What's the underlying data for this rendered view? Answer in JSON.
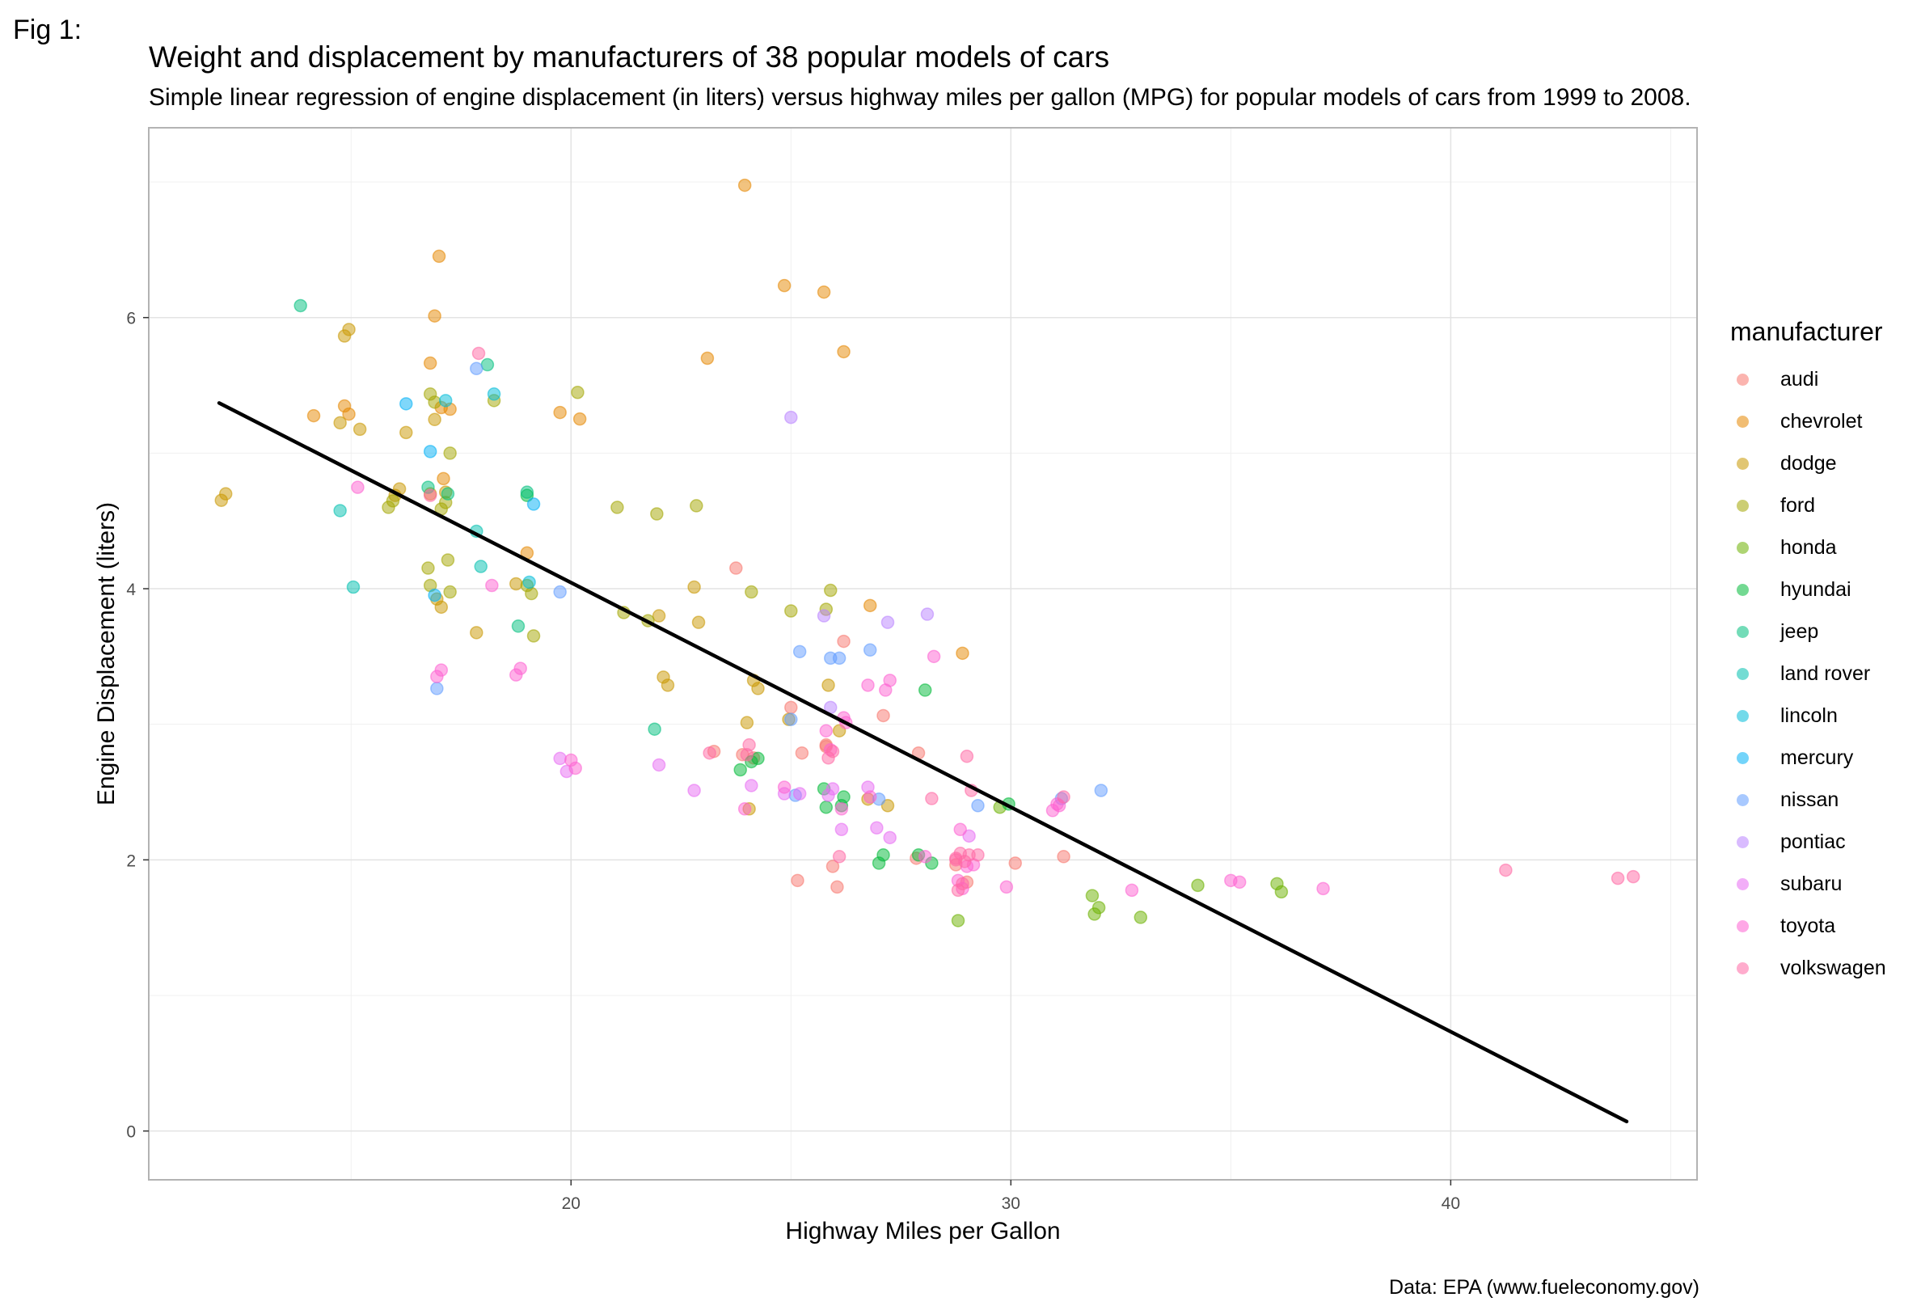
{
  "fig_label": "Fig 1:",
  "caption": "Data: EPA (www.fueleconomy.gov)",
  "chart_data": {
    "type": "scatter",
    "title": "Weight and displacement by manufacturers of 38 popular models of cars",
    "subtitle": "Simple linear regression of engine displacement (in liters) versus highway miles per gallon (MPG) for popular models of cars from 1999 to 2008.",
    "xlabel": "Highway Miles per Gallon",
    "ylabel": "Engine Displacement (liters)",
    "xlim": [
      10.4,
      45.6
    ],
    "ylim": [
      -0.36,
      7.4
    ],
    "x_ticks": [
      20,
      30,
      40
    ],
    "y_ticks": [
      0,
      2,
      4,
      6
    ],
    "grid": true,
    "legend_title": "manufacturer",
    "legend_position": "right",
    "regression_line": {
      "x": [
        12,
        44
      ],
      "y": [
        5.37,
        0.07
      ],
      "color": "#000000"
    },
    "series": [
      {
        "name": "audi",
        "color": "#F8766D",
        "points": [
          [
            24,
            4.2
          ],
          [
            26,
            3.6
          ],
          [
            27,
            3.1
          ],
          [
            25,
            3.1
          ],
          [
            24,
            2.8
          ],
          [
            26,
            2.8
          ],
          [
            25,
            2.8
          ],
          [
            25,
            1.8
          ],
          [
            26,
            1.8
          ],
          [
            26,
            2.0
          ],
          [
            28,
            2.0
          ],
          [
            29,
            2.0
          ],
          [
            31,
            2.0
          ],
          [
            30,
            2.0
          ],
          [
            29,
            1.8
          ],
          [
            28,
            2.8
          ],
          [
            26,
            2.8
          ],
          [
            23,
            2.8
          ],
          [
            24,
            2.8
          ]
        ]
      },
      {
        "name": "chevrolet",
        "color": "#E58700",
        "points": [
          [
            24,
            7.0
          ],
          [
            25,
            6.2
          ],
          [
            26,
            6.2
          ],
          [
            26,
            5.7
          ],
          [
            23,
            5.7
          ],
          [
            17,
            6.5
          ],
          [
            17,
            6.0
          ],
          [
            17,
            5.7
          ],
          [
            17,
            5.3
          ],
          [
            14,
            5.3
          ],
          [
            17,
            5.3
          ],
          [
            15,
            5.3
          ],
          [
            15,
            5.3
          ],
          [
            20,
            5.3
          ],
          [
            20,
            5.3
          ],
          [
            17,
            4.8
          ],
          [
            19,
            4.3
          ],
          [
            29,
            3.5
          ],
          [
            27,
            3.9
          ]
        ]
      },
      {
        "name": "dodge",
        "color": "#C99800",
        "points": [
          [
            12,
            4.7
          ],
          [
            12,
            4.7
          ],
          [
            15,
            5.9
          ],
          [
            15,
            5.9
          ],
          [
            15,
            5.2
          ],
          [
            15,
            5.2
          ],
          [
            16,
            4.7
          ],
          [
            16,
            4.7
          ],
          [
            17,
            5.2
          ],
          [
            17,
            4.7
          ],
          [
            16,
            5.2
          ],
          [
            17,
            4.7
          ],
          [
            17,
            3.9
          ],
          [
            17,
            3.9
          ],
          [
            18,
            3.7
          ],
          [
            19,
            4.0
          ],
          [
            22,
            3.3
          ],
          [
            22,
            3.3
          ],
          [
            22,
            3.8
          ],
          [
            23,
            3.8
          ],
          [
            23,
            4.0
          ],
          [
            24,
            3.3
          ],
          [
            24,
            3.3
          ],
          [
            24,
            2.4
          ],
          [
            25,
            3.0
          ],
          [
            26,
            3.3
          ],
          [
            27,
            2.4
          ],
          [
            27,
            2.4
          ],
          [
            26,
            3.0
          ],
          [
            24,
            3.0
          ]
        ]
      },
      {
        "name": "ford",
        "color": "#A3A500",
        "points": [
          [
            17,
            4.0
          ],
          [
            17,
            4.0
          ],
          [
            17,
            4.6
          ],
          [
            17,
            4.6
          ],
          [
            16,
            4.6
          ],
          [
            16,
            4.6
          ],
          [
            17,
            4.2
          ],
          [
            17,
            4.2
          ],
          [
            19,
            4.0
          ],
          [
            19,
            4.0
          ],
          [
            17,
            5.4
          ],
          [
            17,
            5.4
          ],
          [
            18,
            5.4
          ],
          [
            20,
            5.4
          ],
          [
            21,
            4.6
          ],
          [
            22,
            4.6
          ],
          [
            23,
            4.6
          ],
          [
            22,
            3.8
          ],
          [
            21,
            3.8
          ],
          [
            24,
            4.0
          ],
          [
            25,
            3.8
          ],
          [
            26,
            4.0
          ],
          [
            26,
            3.8
          ],
          [
            17,
            5.0
          ],
          [
            19,
            3.7
          ]
        ]
      },
      {
        "name": "honda",
        "color": "#6BB100",
        "points": [
          [
            32,
            1.6
          ],
          [
            32,
            1.6
          ],
          [
            29,
            1.6
          ],
          [
            34,
            1.8
          ],
          [
            36,
            1.8
          ],
          [
            36,
            1.8
          ],
          [
            33,
            1.6
          ],
          [
            32,
            1.7
          ],
          [
            30,
            2.4
          ]
        ]
      },
      {
        "name": "hyundai",
        "color": "#00BA38",
        "points": [
          [
            26,
            2.5
          ],
          [
            24,
            2.7
          ],
          [
            27,
            2.0
          ],
          [
            28,
            2.0
          ],
          [
            26,
            2.4
          ],
          [
            24,
            2.7
          ],
          [
            26,
            2.4
          ],
          [
            28,
            3.3
          ],
          [
            30,
            2.4
          ],
          [
            24,
            2.7
          ],
          [
            26,
            2.5
          ],
          [
            28,
            2.0
          ],
          [
            27,
            2.0
          ],
          [
            19,
            4.7
          ]
        ]
      },
      {
        "name": "jeep",
        "color": "#00BF7D",
        "points": [
          [
            14,
            6.1
          ],
          [
            17,
            4.7
          ],
          [
            17,
            4.7
          ],
          [
            18,
            5.7
          ],
          [
            19,
            4.7
          ],
          [
            22,
            3.0
          ],
          [
            19,
            3.7
          ]
        ]
      },
      {
        "name": "land rover",
        "color": "#00C0AF",
        "points": [
          [
            15,
            4.0
          ],
          [
            18,
            4.2
          ],
          [
            18,
            4.4
          ],
          [
            15,
            4.6
          ]
        ]
      },
      {
        "name": "lincoln",
        "color": "#00BCD8",
        "points": [
          [
            18,
            5.4
          ],
          [
            17,
            5.4
          ],
          [
            19,
            4.0
          ]
        ]
      },
      {
        "name": "mercury",
        "color": "#00B0F6",
        "points": [
          [
            17,
            4.0
          ],
          [
            17,
            5.0
          ],
          [
            16,
            5.4
          ],
          [
            19,
            4.6
          ]
        ]
      },
      {
        "name": "nissan",
        "color": "#619CFF",
        "points": [
          [
            25,
            2.5
          ],
          [
            25,
            3.0
          ],
          [
            26,
            3.5
          ],
          [
            27,
            3.5
          ],
          [
            29,
            2.4
          ],
          [
            31,
            2.5
          ],
          [
            32,
            2.5
          ],
          [
            17,
            3.3
          ],
          [
            18,
            5.6
          ],
          [
            20,
            4.0
          ],
          [
            25,
            3.5
          ],
          [
            26,
            3.5
          ],
          [
            27,
            2.4
          ]
        ]
      },
      {
        "name": "pontiac",
        "color": "#B983FF",
        "points": [
          [
            26,
            3.8
          ],
          [
            27,
            3.8
          ],
          [
            28,
            3.8
          ],
          [
            25,
            5.3
          ],
          [
            26,
            3.1
          ]
        ]
      },
      {
        "name": "subaru",
        "color": "#E76BF3",
        "points": [
          [
            26,
            2.5
          ],
          [
            26,
            2.5
          ],
          [
            27,
            2.5
          ],
          [
            25,
            2.5
          ],
          [
            24,
            2.5
          ],
          [
            22,
            2.7
          ],
          [
            20,
            2.7
          ],
          [
            23,
            2.5
          ],
          [
            27,
            2.2
          ],
          [
            26,
            2.2
          ],
          [
            29,
            2.2
          ],
          [
            27,
            2.2
          ],
          [
            25,
            2.5
          ],
          [
            20,
            2.7
          ]
        ]
      },
      {
        "name": "toyota",
        "color": "#FD61D1",
        "points": [
          [
            15,
            4.7
          ],
          [
            17,
            3.4
          ],
          [
            17,
            3.4
          ],
          [
            19,
            3.4
          ],
          [
            19,
            3.4
          ],
          [
            18,
            4.0
          ],
          [
            20,
            2.7
          ],
          [
            20,
            2.7
          ],
          [
            29,
            1.8
          ],
          [
            29,
            1.8
          ],
          [
            28,
            3.5
          ],
          [
            27,
            3.3
          ],
          [
            31,
            2.4
          ],
          [
            31,
            2.4
          ],
          [
            29,
            2.2
          ],
          [
            33,
            1.8
          ],
          [
            35,
            1.8
          ],
          [
            37,
            1.8
          ],
          [
            35,
            1.8
          ],
          [
            30,
            1.8
          ],
          [
            26,
            3.0
          ],
          [
            26,
            3.0
          ],
          [
            29,
            2.0
          ],
          [
            28,
            2.0
          ],
          [
            24,
            2.4
          ],
          [
            25,
            2.5
          ],
          [
            27,
            3.3
          ],
          [
            26,
            3.0
          ],
          [
            31,
            2.4
          ],
          [
            29,
            2.0
          ],
          [
            26,
            2.8
          ],
          [
            27,
            2.5
          ],
          [
            27,
            3.3
          ],
          [
            26,
            2.4
          ]
        ]
      },
      {
        "name": "volkswagen",
        "color": "#FF67A4",
        "points": [
          [
            44,
            1.9
          ],
          [
            41,
            1.9
          ],
          [
            44,
            1.9
          ],
          [
            29,
            2.0
          ],
          [
            29,
            2.0
          ],
          [
            29,
            2.0
          ],
          [
            29,
            2.0
          ],
          [
            28,
            2.5
          ],
          [
            29,
            2.5
          ],
          [
            29,
            2.8
          ],
          [
            29,
            1.8
          ],
          [
            29,
            1.8
          ],
          [
            29,
            2.0
          ],
          [
            23,
            2.8
          ],
          [
            24,
            2.8
          ],
          [
            26,
            2.8
          ],
          [
            26,
            2.8
          ],
          [
            29,
            2.0
          ],
          [
            31,
            2.5
          ],
          [
            26,
            2.0
          ],
          [
            24,
            2.8
          ],
          [
            18,
            5.7
          ],
          [
            17,
            4.7
          ]
        ]
      }
    ]
  }
}
